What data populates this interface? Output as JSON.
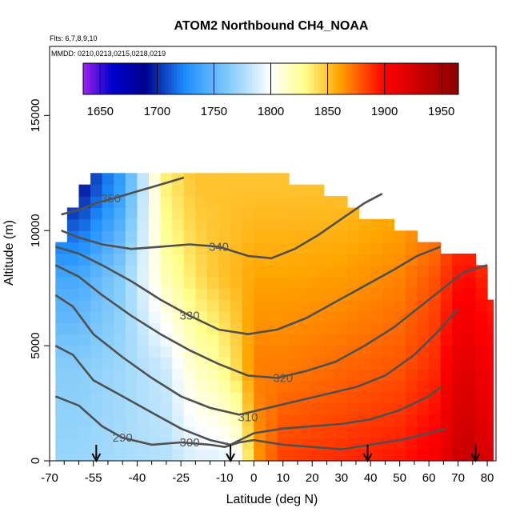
{
  "chart_data": {
    "type": "heatmap",
    "title": "ATOM2 Northbound CH4_NOAA",
    "flights_text": "Flts: 6,7,8,9,10",
    "mmdd_text": "MMDD: 0210,0213,0215,0218,0219",
    "xlabel": "Latitude (deg N)",
    "ylabel": "Altitude (m)",
    "xlim": [
      -70,
      83
    ],
    "ylim": [
      0,
      18000
    ],
    "x_ticks": [
      -70,
      -55,
      -40,
      -25,
      -10,
      0,
      10,
      20,
      30,
      40,
      50,
      60,
      70,
      80
    ],
    "x_minor_ticks": [
      -65,
      -60,
      -50,
      -45,
      -35,
      -30,
      -20,
      -15,
      -5,
      5,
      15,
      25,
      35,
      45,
      55,
      65,
      75
    ],
    "y_ticks": [
      0,
      5000,
      10000,
      15000
    ],
    "colorbar": {
      "min": 1635,
      "max": 1965,
      "ticks": [
        1650,
        1700,
        1750,
        1800,
        1850,
        1900,
        1950
      ],
      "stops": [
        {
          "value": 1635,
          "color": "#a020f0"
        },
        {
          "value": 1660,
          "color": "#0000cd"
        },
        {
          "value": 1690,
          "color": "#00008b"
        },
        {
          "value": 1725,
          "color": "#1e90ff"
        },
        {
          "value": 1765,
          "color": "#87cefa"
        },
        {
          "value": 1800,
          "color": "#ffffff"
        },
        {
          "value": 1830,
          "color": "#ffff8c"
        },
        {
          "value": 1860,
          "color": "#ffa500"
        },
        {
          "value": 1900,
          "color": "#ff0000"
        },
        {
          "value": 1965,
          "color": "#8b0000"
        }
      ]
    },
    "field": {
      "lat_bins": [
        -66,
        -62,
        -58,
        -54,
        -50,
        -46,
        -42,
        -38,
        -34,
        -30,
        -26,
        -22,
        -18,
        -14,
        -10,
        -6,
        -2,
        2,
        6,
        10,
        14,
        18,
        22,
        26,
        30,
        34,
        38,
        42,
        46,
        50,
        54,
        58,
        62,
        66,
        70,
        74,
        78,
        82
      ],
      "lat_width": 4,
      "alt_step": 500,
      "profiles": [
        {
          "lat": -60,
          "alt": [
            0,
            4000,
            8000,
            12000
          ],
          "ch4": [
            1770,
            1765,
            1740,
            1690
          ]
        },
        {
          "lat": -45,
          "alt": [
            0,
            4000,
            8000,
            12000
          ],
          "ch4": [
            1775,
            1772,
            1765,
            1735
          ]
        },
        {
          "lat": -30,
          "alt": [
            0,
            4000,
            8000,
            12000
          ],
          "ch4": [
            1778,
            1785,
            1820,
            1835
          ]
        },
        {
          "lat": -20,
          "alt": [
            0,
            4000,
            8000,
            12000
          ],
          "ch4": [
            1790,
            1815,
            1840,
            1850
          ]
        },
        {
          "lat": -12,
          "alt": [
            0,
            4000,
            8000,
            12000
          ],
          "ch4": [
            1790,
            1825,
            1850,
            1850
          ]
        },
        {
          "lat": -5,
          "alt": [
            0,
            4000,
            8000,
            12000
          ],
          "ch4": [
            1800,
            1845,
            1855,
            1850
          ]
        },
        {
          "lat": 0,
          "alt": [
            0,
            4000,
            8000,
            12000
          ],
          "ch4": [
            1860,
            1870,
            1860,
            1850
          ]
        },
        {
          "lat": 10,
          "alt": [
            0,
            4000,
            8000,
            12000
          ],
          "ch4": [
            1885,
            1870,
            1860,
            1850
          ]
        },
        {
          "lat": 30,
          "alt": [
            0,
            4000,
            8000,
            12000
          ],
          "ch4": [
            1890,
            1875,
            1862,
            1850
          ]
        },
        {
          "lat": 50,
          "alt": [
            0,
            4000,
            8000,
            12000
          ],
          "ch4": [
            1895,
            1880,
            1868,
            1855
          ]
        },
        {
          "lat": 62,
          "alt": [
            0,
            4000,
            8000,
            12000
          ],
          "ch4": [
            1905,
            1890,
            1880,
            1860
          ]
        },
        {
          "lat": 72,
          "alt": [
            0,
            4000,
            8000,
            12000
          ],
          "ch4": [
            1935,
            1920,
            1900,
            1880
          ]
        },
        {
          "lat": 80,
          "alt": [
            0,
            4000,
            8000,
            12000
          ],
          "ch4": [
            1920,
            1905,
            1890,
            1860
          ]
        }
      ],
      "top_altitude": [
        {
          "lat": -66,
          "alt": 9500
        },
        {
          "lat": -62,
          "alt": 11000
        },
        {
          "lat": -58,
          "alt": 12000
        },
        {
          "lat": -50,
          "alt": 12500
        },
        {
          "lat": -30,
          "alt": 12500
        },
        {
          "lat": -10,
          "alt": 12500
        },
        {
          "lat": 2,
          "alt": 12500
        },
        {
          "lat": 14,
          "alt": 12000
        },
        {
          "lat": 26,
          "alt": 11500
        },
        {
          "lat": 38,
          "alt": 10500
        },
        {
          "lat": 50,
          "alt": 10000
        },
        {
          "lat": 58,
          "alt": 9500
        },
        {
          "lat": 66,
          "alt": 9000
        },
        {
          "lat": 74,
          "alt": 9000
        },
        {
          "lat": 78,
          "alt": 8500
        },
        {
          "lat": 82,
          "alt": 7000
        }
      ]
    },
    "contours": [
      {
        "label": "290",
        "label_pos": [
          -45,
          1000
        ],
        "points": [
          [
            -68,
            2800
          ],
          [
            -60,
            2400
          ],
          [
            -52,
            1500
          ],
          [
            -45,
            1000
          ],
          [
            -35,
            700
          ],
          [
            -25,
            800
          ],
          [
            -15,
            700
          ],
          [
            -10,
            600
          ],
          [
            -5,
            800
          ],
          [
            0,
            900
          ],
          [
            10,
            700
          ],
          [
            20,
            600
          ],
          [
            30,
            500
          ],
          [
            40,
            700
          ],
          [
            50,
            900
          ],
          [
            60,
            1200
          ],
          [
            66,
            1400
          ]
        ]
      },
      {
        "label": "300",
        "label_pos": [
          -22,
          800
        ],
        "points": [
          [
            -68,
            5000
          ],
          [
            -62,
            4600
          ],
          [
            -55,
            3500
          ],
          [
            -45,
            2800
          ],
          [
            -35,
            2100
          ],
          [
            -25,
            1400
          ],
          [
            -15,
            900
          ],
          [
            -8,
            700
          ],
          [
            0,
            1200
          ],
          [
            10,
            1400
          ],
          [
            20,
            1500
          ],
          [
            30,
            1600
          ],
          [
            40,
            1800
          ],
          [
            50,
            2200
          ],
          [
            60,
            2800
          ],
          [
            64,
            3200
          ]
        ]
      },
      {
        "label": "310",
        "label_pos": [
          -2,
          1900
        ],
        "points": [
          [
            -68,
            7200
          ],
          [
            -62,
            6700
          ],
          [
            -55,
            5500
          ],
          [
            -45,
            4500
          ],
          [
            -35,
            3600
          ],
          [
            -25,
            2800
          ],
          [
            -15,
            2300
          ],
          [
            -5,
            2000
          ],
          [
            5,
            2300
          ],
          [
            15,
            2600
          ],
          [
            25,
            2900
          ],
          [
            35,
            3200
          ],
          [
            45,
            3700
          ],
          [
            55,
            4600
          ],
          [
            63,
            5600
          ],
          [
            70,
            6600
          ]
        ]
      },
      {
        "label": "320",
        "label_pos": [
          10,
          3600
        ],
        "points": [
          [
            -68,
            8500
          ],
          [
            -60,
            8000
          ],
          [
            -52,
            7200
          ],
          [
            -42,
            6300
          ],
          [
            -32,
            5500
          ],
          [
            -22,
            4800
          ],
          [
            -12,
            4200
          ],
          [
            -2,
            3700
          ],
          [
            8,
            3600
          ],
          [
            18,
            3900
          ],
          [
            28,
            4300
          ],
          [
            38,
            5000
          ],
          [
            48,
            5800
          ],
          [
            56,
            6600
          ],
          [
            64,
            7400
          ],
          [
            72,
            8200
          ],
          [
            80,
            8500
          ]
        ]
      },
      {
        "label": "330",
        "label_pos": [
          -22,
          6300
        ],
        "points": [
          [
            -68,
            9300
          ],
          [
            -60,
            9000
          ],
          [
            -52,
            8500
          ],
          [
            -42,
            7800
          ],
          [
            -32,
            7000
          ],
          [
            -22,
            6300
          ],
          [
            -12,
            5700
          ],
          [
            -2,
            5500
          ],
          [
            8,
            5700
          ],
          [
            18,
            6200
          ],
          [
            28,
            6900
          ],
          [
            38,
            7600
          ],
          [
            48,
            8300
          ],
          [
            56,
            8900
          ],
          [
            64,
            9300
          ]
        ]
      },
      {
        "label": "340",
        "label_pos": [
          -12,
          9300
        ],
        "points": [
          [
            -66,
            10000
          ],
          [
            -60,
            9700
          ],
          [
            -52,
            9400
          ],
          [
            -42,
            9200
          ],
          [
            -32,
            9300
          ],
          [
            -22,
            9400
          ],
          [
            -12,
            9300
          ],
          [
            -2,
            8900
          ],
          [
            6,
            8800
          ],
          [
            14,
            9200
          ],
          [
            22,
            9800
          ],
          [
            30,
            10500
          ],
          [
            38,
            11200
          ],
          [
            44,
            11600
          ]
        ]
      },
      {
        "label": "350",
        "label_pos": [
          -49,
          11400
        ],
        "points": [
          [
            -66,
            10700
          ],
          [
            -60,
            10900
          ],
          [
            -54,
            11200
          ],
          [
            -48,
            11400
          ],
          [
            -40,
            11700
          ],
          [
            -32,
            12000
          ],
          [
            -24,
            12300
          ]
        ]
      }
    ],
    "arrows": [
      -54,
      -8,
      39,
      76
    ]
  }
}
